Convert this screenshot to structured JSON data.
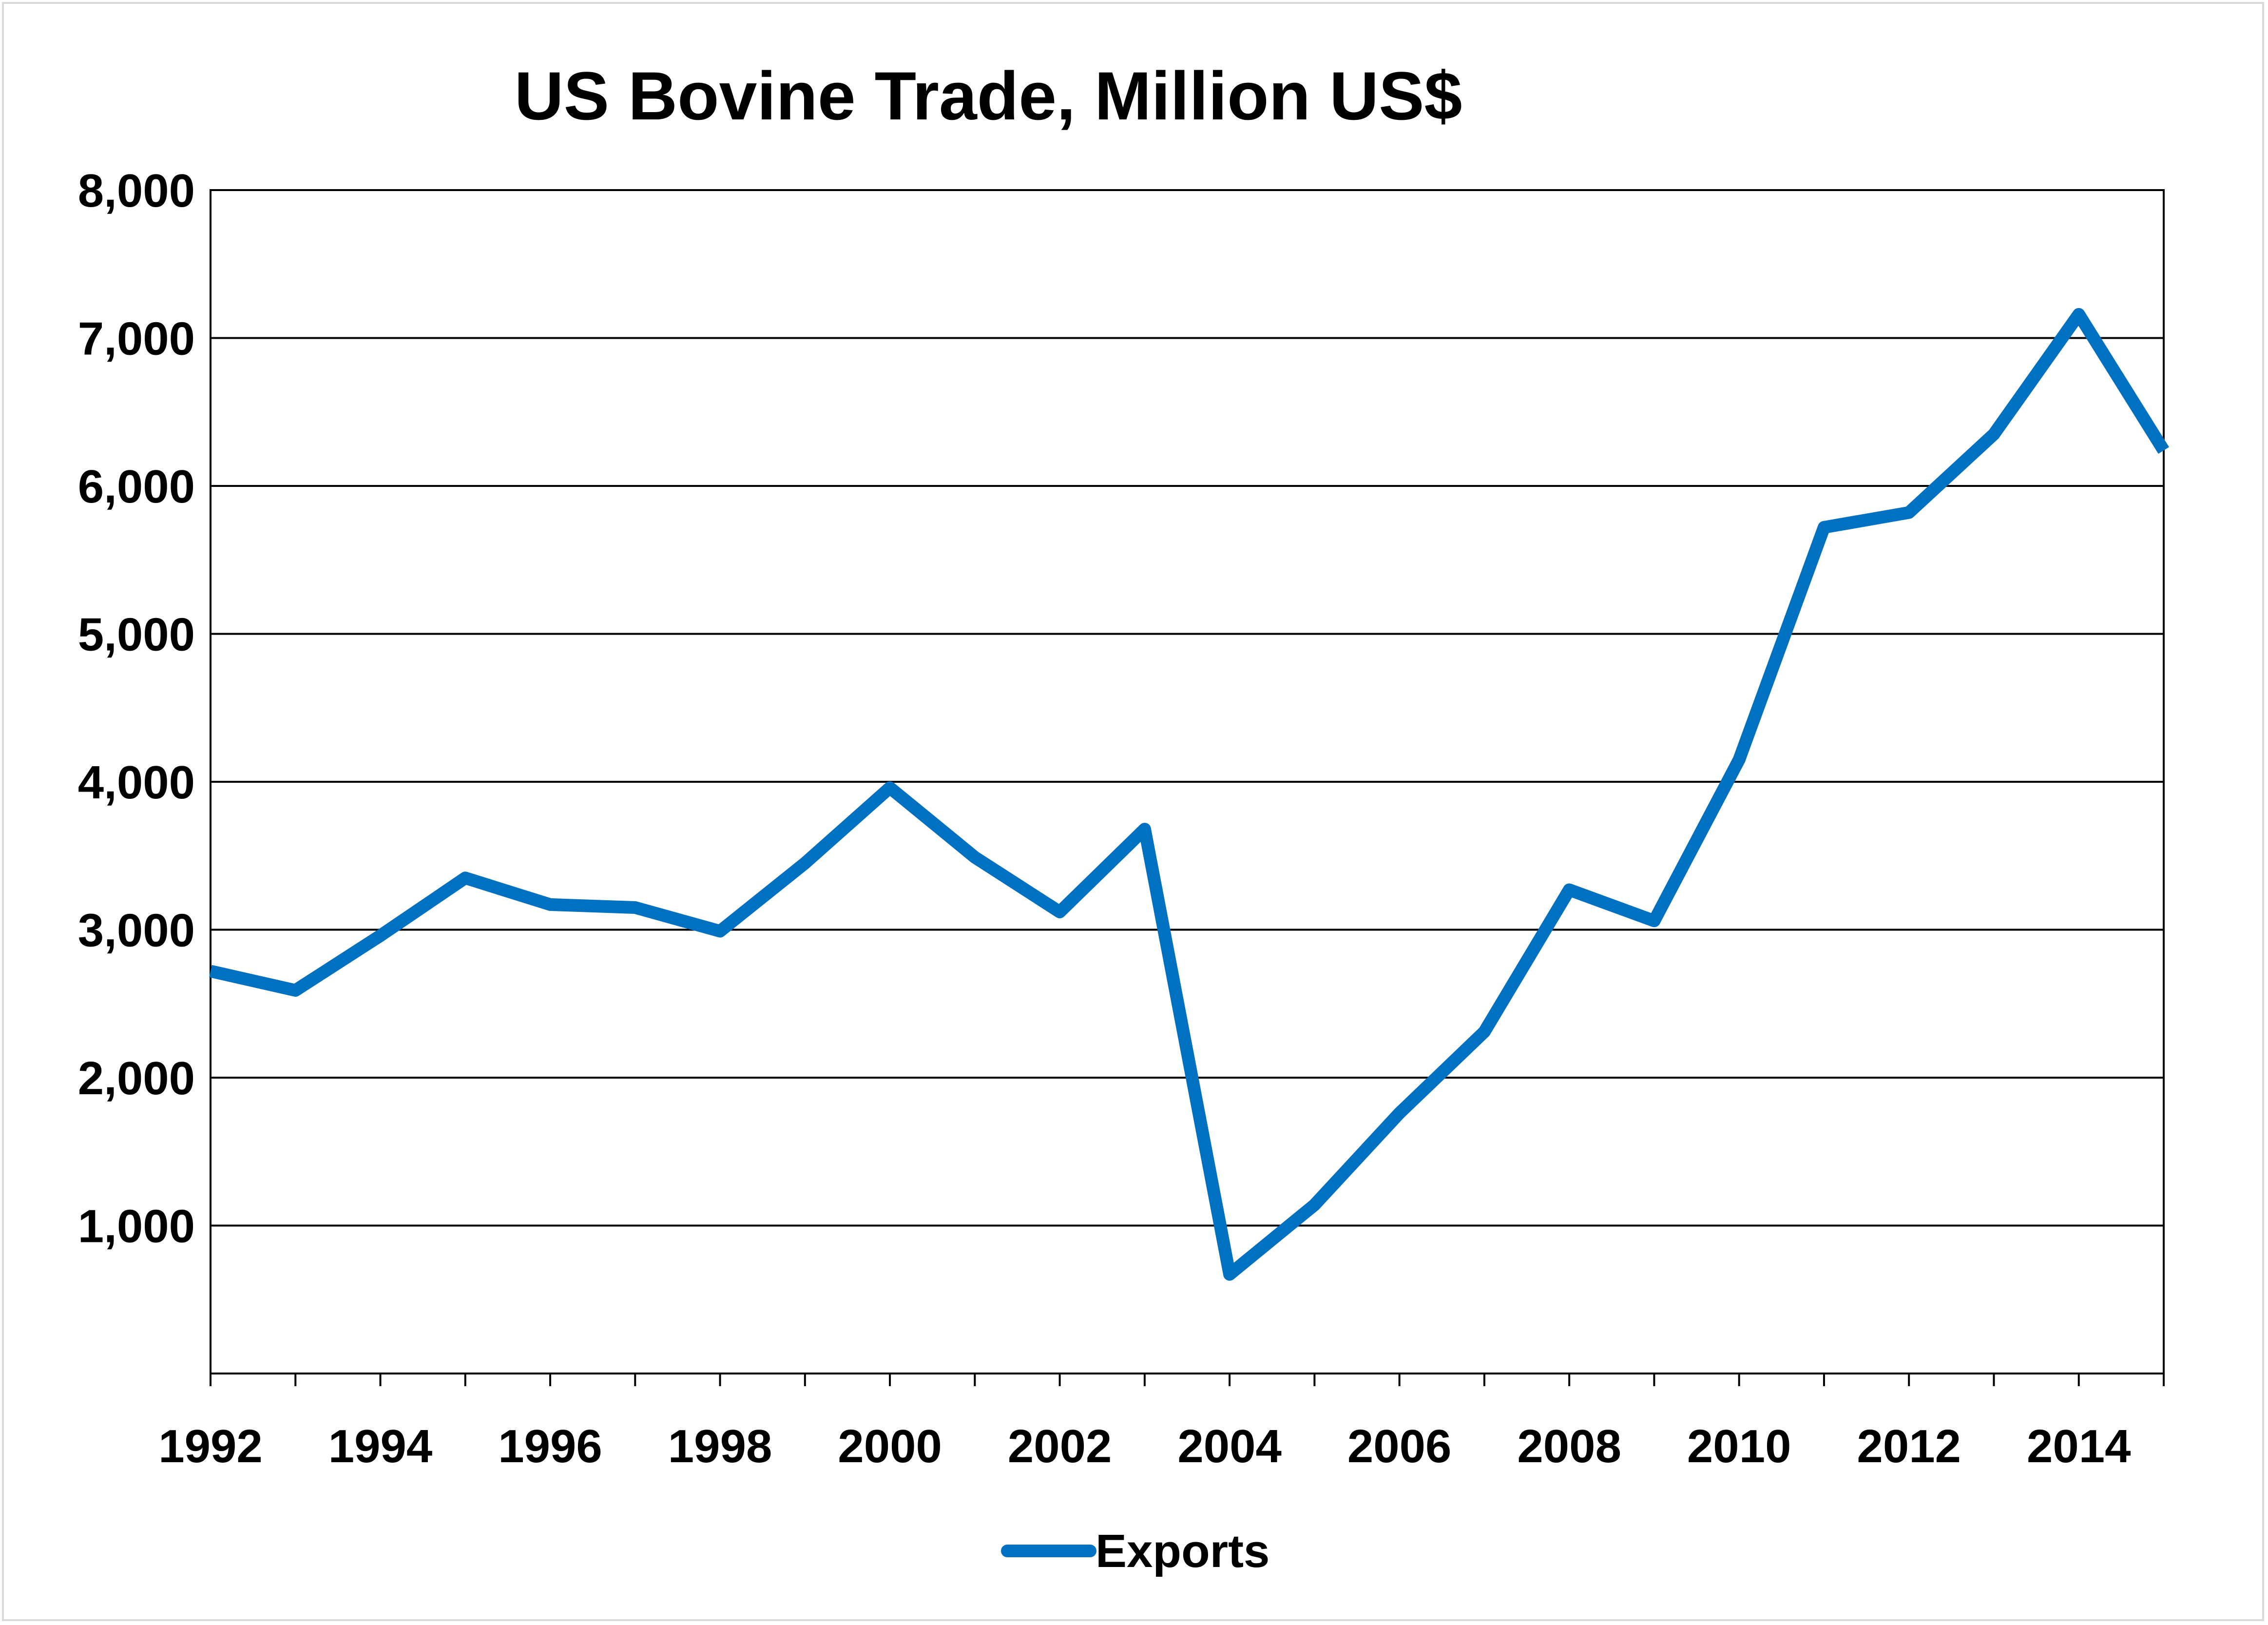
{
  "chart_data": {
    "type": "line",
    "title": "US Bovine Trade, Million US$",
    "xlabel": "",
    "ylabel": "",
    "xlim": [
      1992,
      2015
    ],
    "ylim": [
      0,
      8000
    ],
    "y_ticks": [
      1000,
      2000,
      3000,
      4000,
      5000,
      6000,
      7000,
      8000
    ],
    "y_tick_labels": [
      "1,000",
      "2,000",
      "3,000",
      "4,000",
      "5,000",
      "6,000",
      "7,000",
      "8,000"
    ],
    "x_tick_labels": [
      "1992",
      "1994",
      "1996",
      "1998",
      "2000",
      "2002",
      "2004",
      "2006",
      "2008",
      "2010",
      "2012",
      "2014"
    ],
    "grid": true,
    "legend_position": "bottom",
    "series": [
      {
        "name": "Exports",
        "color": "#0070C0",
        "x": [
          1992,
          1993,
          1994,
          1995,
          1996,
          1997,
          1998,
          1999,
          2000,
          2001,
          2002,
          2003,
          2004,
          2005,
          2006,
          2007,
          2008,
          2009,
          2010,
          2011,
          2012,
          2013,
          2014,
          2015
        ],
        "values": [
          2720,
          2590,
          2960,
          3350,
          3170,
          3150,
          2990,
          3450,
          3960,
          3490,
          3120,
          3680,
          670,
          1140,
          1760,
          2310,
          3270,
          3060,
          4150,
          5720,
          5820,
          6350,
          7160,
          6240
        ]
      }
    ]
  }
}
